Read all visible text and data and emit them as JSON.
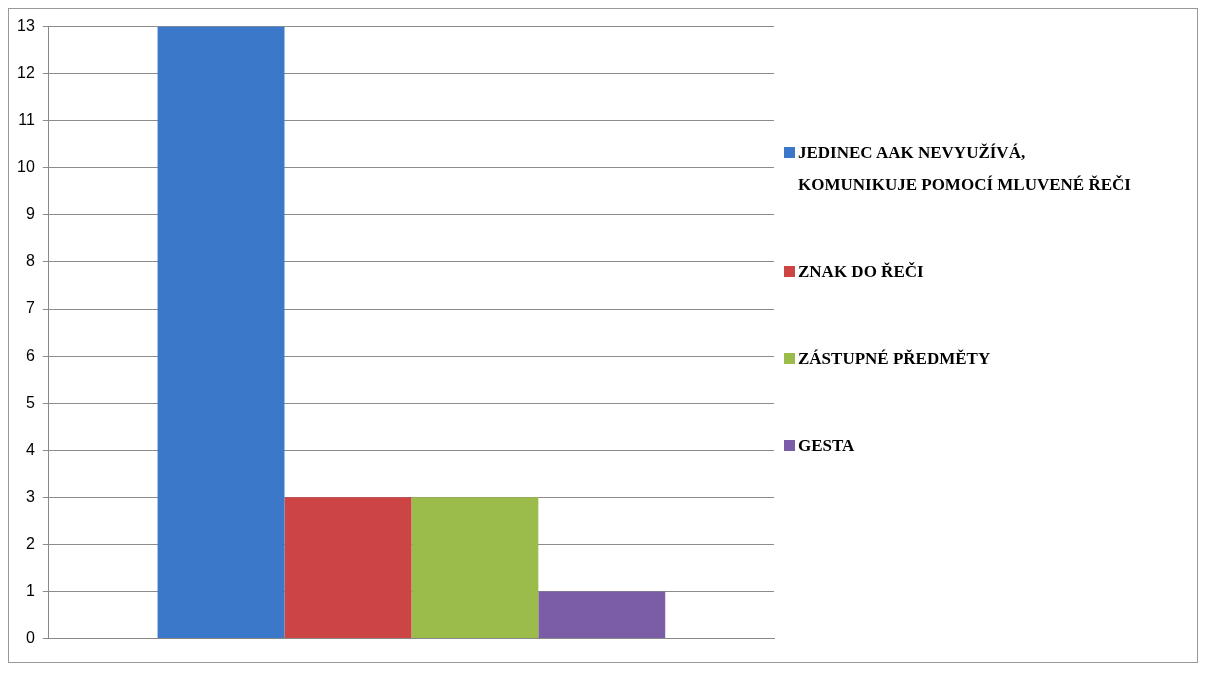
{
  "chart_data": {
    "type": "bar",
    "categories": [
      null
    ],
    "series": [
      {
        "name": "JEDINEC AAK NEVYUŽÍVÁ, KOMUNIKUJE POMOCÍ MLUVENÉ ŘEČI",
        "color": "#3b78c9",
        "values": [
          13
        ]
      },
      {
        "name": "ZNAK DO ŘEČI",
        "color": "#cc4444",
        "values": [
          3
        ]
      },
      {
        "name": "ZÁSTUPNÉ PŘEDMĚTY",
        "color": "#9bbb4a",
        "values": [
          3
        ]
      },
      {
        "name": "GESTA",
        "color": "#7b5ca6",
        "values": [
          1
        ]
      }
    ],
    "ylim": [
      0,
      13
    ],
    "yticks": [
      0,
      1,
      2,
      3,
      4,
      5,
      6,
      7,
      8,
      9,
      10,
      11,
      12,
      13
    ],
    "grid": "y",
    "legend": "right"
  }
}
